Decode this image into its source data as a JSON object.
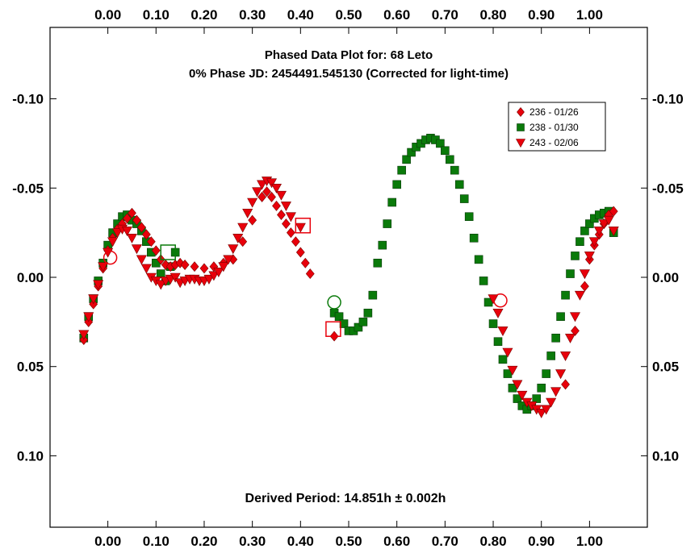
{
  "chart_data": {
    "type": "scatter",
    "title": "Phased Data Plot for: 68 Leto",
    "subtitle": "0% Phase JD:  2454491.545130   (Corrected for light-time)",
    "annotation": "Derived Period: 14.851h ± 0.002h",
    "xlabel": "",
    "ylabel": "",
    "xlim": [
      -0.12,
      1.12
    ],
    "ylim": [
      0.14,
      -0.14
    ],
    "y_inverted": true,
    "x_ticks": [
      "0.00",
      "0.10",
      "0.20",
      "0.30",
      "0.40",
      "0.50",
      "0.60",
      "0.70",
      "0.80",
      "0.90",
      "1.00"
    ],
    "x_tick_values": [
      0.0,
      0.1,
      0.2,
      0.3,
      0.4,
      0.5,
      0.6,
      0.7,
      0.8,
      0.9,
      1.0
    ],
    "y_ticks": [
      "-0.10",
      "-0.05",
      "0.00",
      "0.05",
      "0.10"
    ],
    "y_tick_values": [
      -0.1,
      -0.05,
      0.0,
      0.05,
      0.1
    ],
    "grid": false,
    "legend_position": "top-right",
    "series": [
      {
        "name": "236 - 01/26",
        "marker": "diamond",
        "color": "#e8000b",
        "x": [
          -0.05,
          -0.04,
          -0.03,
          -0.02,
          -0.01,
          0.0,
          0.01,
          0.02,
          0.03,
          0.04,
          0.05,
          0.06,
          0.07,
          0.08,
          0.09,
          0.1,
          0.11,
          0.12,
          0.13,
          0.14,
          0.15,
          0.16,
          0.18,
          0.2,
          0.22,
          0.24,
          0.26,
          0.28,
          0.3,
          0.32,
          0.33,
          0.34,
          0.35,
          0.36,
          0.37,
          0.38,
          0.39,
          0.4,
          0.41,
          0.42,
          0.47,
          0.95,
          0.97,
          0.99,
          1.0,
          1.01,
          1.02,
          1.03,
          1.04,
          1.05
        ],
        "y": [
          0.035,
          0.025,
          0.015,
          0.005,
          -0.005,
          -0.015,
          -0.022,
          -0.027,
          -0.03,
          -0.033,
          -0.036,
          -0.032,
          -0.028,
          -0.024,
          -0.02,
          -0.015,
          -0.01,
          -0.007,
          -0.006,
          -0.007,
          -0.008,
          -0.007,
          -0.006,
          -0.005,
          -0.006,
          -0.008,
          -0.01,
          -0.02,
          -0.032,
          -0.045,
          -0.048,
          -0.045,
          -0.04,
          -0.035,
          -0.03,
          -0.025,
          -0.02,
          -0.014,
          -0.008,
          -0.002,
          0.033,
          0.06,
          0.03,
          0.005,
          -0.01,
          -0.018,
          -0.024,
          -0.03,
          -0.035,
          -0.037
        ]
      },
      {
        "name": "238 - 01/30",
        "marker": "square",
        "color": "#0a7a0a",
        "x": [
          -0.05,
          -0.04,
          -0.03,
          -0.02,
          -0.01,
          0.0,
          0.01,
          0.02,
          0.03,
          0.04,
          0.05,
          0.06,
          0.07,
          0.08,
          0.09,
          0.1,
          0.11,
          0.12,
          0.13,
          0.14,
          0.47,
          0.48,
          0.49,
          0.5,
          0.51,
          0.52,
          0.53,
          0.54,
          0.55,
          0.56,
          0.57,
          0.58,
          0.59,
          0.6,
          0.61,
          0.62,
          0.63,
          0.64,
          0.65,
          0.66,
          0.67,
          0.68,
          0.69,
          0.7,
          0.71,
          0.72,
          0.73,
          0.74,
          0.75,
          0.76,
          0.77,
          0.78,
          0.79,
          0.8,
          0.81,
          0.82,
          0.83,
          0.84,
          0.85,
          0.86,
          0.87,
          0.88,
          0.89,
          0.9,
          0.91,
          0.92,
          0.93,
          0.94,
          0.95,
          0.96,
          0.97,
          0.98,
          0.99,
          1.0,
          1.01,
          1.02,
          1.03,
          1.04,
          1.05
        ],
        "y": [
          0.034,
          0.022,
          0.012,
          0.002,
          -0.008,
          -0.018,
          -0.025,
          -0.03,
          -0.034,
          -0.035,
          -0.032,
          -0.03,
          -0.026,
          -0.02,
          -0.014,
          -0.008,
          -0.002,
          0.002,
          -0.006,
          -0.014,
          0.02,
          0.022,
          0.026,
          0.03,
          0.03,
          0.028,
          0.025,
          0.02,
          0.01,
          -0.008,
          -0.018,
          -0.03,
          -0.042,
          -0.052,
          -0.06,
          -0.066,
          -0.07,
          -0.073,
          -0.075,
          -0.077,
          -0.078,
          -0.077,
          -0.075,
          -0.071,
          -0.066,
          -0.06,
          -0.052,
          -0.044,
          -0.034,
          -0.022,
          -0.01,
          0.002,
          0.014,
          0.026,
          0.036,
          0.046,
          0.054,
          0.062,
          0.068,
          0.072,
          0.074,
          0.072,
          0.068,
          0.062,
          0.054,
          0.044,
          0.034,
          0.022,
          0.01,
          -0.002,
          -0.012,
          -0.02,
          -0.026,
          -0.03,
          -0.033,
          -0.035,
          -0.036,
          -0.037,
          -0.025
        ]
      },
      {
        "name": "243 - 02/06",
        "marker": "triangle-down",
        "color": "#e8000b",
        "x": [
          -0.05,
          -0.04,
          -0.03,
          -0.02,
          -0.01,
          0.0,
          0.01,
          0.02,
          0.03,
          0.04,
          0.05,
          0.06,
          0.07,
          0.08,
          0.09,
          0.1,
          0.11,
          0.12,
          0.13,
          0.14,
          0.15,
          0.16,
          0.17,
          0.18,
          0.19,
          0.2,
          0.21,
          0.22,
          0.23,
          0.24,
          0.25,
          0.26,
          0.27,
          0.28,
          0.29,
          0.3,
          0.31,
          0.32,
          0.33,
          0.34,
          0.35,
          0.36,
          0.37,
          0.38,
          0.4,
          0.8,
          0.81,
          0.82,
          0.83,
          0.84,
          0.85,
          0.86,
          0.87,
          0.88,
          0.89,
          0.9,
          0.91,
          0.92,
          0.93,
          0.94,
          0.95,
          0.96,
          0.97,
          0.98,
          0.99,
          1.0,
          1.01,
          1.02,
          1.03,
          1.04,
          1.05
        ],
        "y": [
          0.032,
          0.022,
          0.012,
          0.004,
          -0.006,
          -0.014,
          -0.02,
          -0.025,
          -0.027,
          -0.026,
          -0.022,
          -0.016,
          -0.01,
          -0.005,
          0.0,
          0.002,
          0.004,
          0.002,
          0.001,
          0.0,
          0.003,
          0.002,
          0.001,
          0.001,
          0.002,
          0.002,
          0.001,
          -0.001,
          -0.003,
          -0.006,
          -0.01,
          -0.016,
          -0.022,
          -0.028,
          -0.036,
          -0.042,
          -0.048,
          -0.052,
          -0.054,
          -0.053,
          -0.05,
          -0.046,
          -0.04,
          -0.034,
          -0.028,
          0.012,
          0.02,
          0.03,
          0.042,
          0.052,
          0.06,
          0.066,
          0.07,
          0.072,
          0.074,
          0.076,
          0.074,
          0.07,
          0.064,
          0.054,
          0.044,
          0.034,
          0.022,
          0.01,
          -0.002,
          -0.012,
          -0.02,
          -0.026,
          -0.03,
          -0.032,
          -0.026
        ]
      }
    ],
    "highlighted_points": [
      {
        "x": 0.005,
        "y": -0.011,
        "shape": "circle",
        "color": "#e8000b"
      },
      {
        "x": 0.125,
        "y": -0.014,
        "shape": "square",
        "color": "#0a7a0a"
      },
      {
        "x": 0.405,
        "y": -0.029,
        "shape": "square",
        "color": "#e8000b"
      },
      {
        "x": 0.47,
        "y": 0.014,
        "shape": "circle",
        "color": "#0a7a0a"
      },
      {
        "x": 0.468,
        "y": 0.029,
        "shape": "square",
        "color": "#e8000b"
      },
      {
        "x": 0.815,
        "y": 0.013,
        "shape": "circle",
        "color": "#e8000b"
      }
    ]
  }
}
